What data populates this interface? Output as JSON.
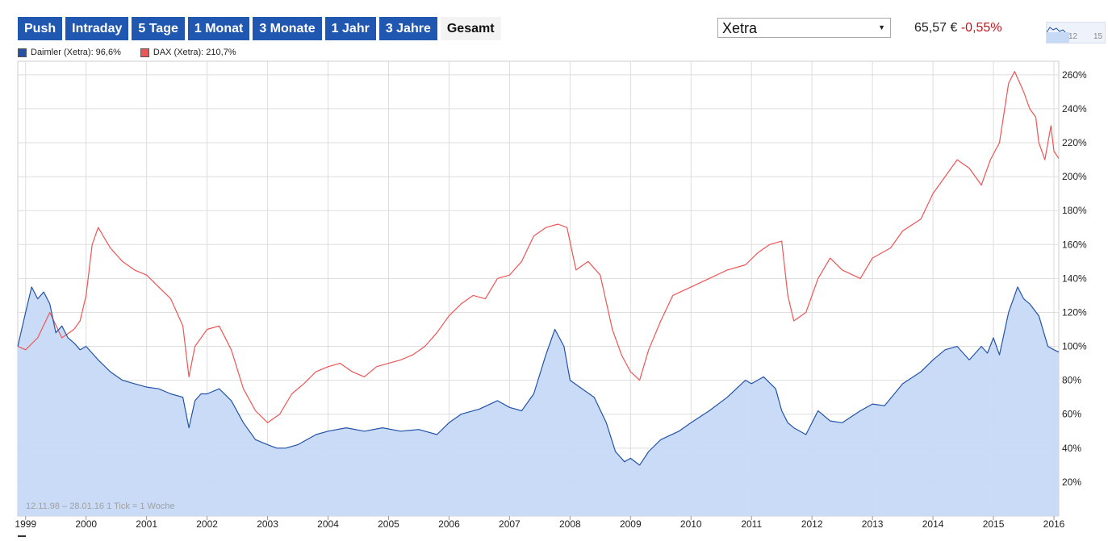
{
  "tabs": [
    {
      "label": "Push",
      "active": false
    },
    {
      "label": "Intraday",
      "active": false
    },
    {
      "label": "5 Tage",
      "active": false
    },
    {
      "label": "1 Monat",
      "active": false
    },
    {
      "label": "3 Monate",
      "active": false
    },
    {
      "label": "1 Jahr",
      "active": false
    },
    {
      "label": "3 Jahre",
      "active": false
    },
    {
      "label": "Gesamt",
      "active": true
    }
  ],
  "exchange": {
    "selected": "Xetra"
  },
  "quote": {
    "price": "65,57 €",
    "change": "-0,55%"
  },
  "mini_chart": {
    "tick_labels": [
      "12",
      "15"
    ]
  },
  "legend": [
    {
      "label": "Daimler (Xetra): 96,6%",
      "color": "#2253a8"
    },
    {
      "label": "DAX (Xetra): 210,7%",
      "color": "#ee5555"
    }
  ],
  "colors": {
    "daimler_line": "#2253a8",
    "daimler_fill": "#c6d9f5",
    "dax_line": "#ee5555",
    "grid": "#dddddd",
    "tab_bg": "#1f57b1"
  },
  "chart_data": {
    "type": "area",
    "info_text": "12.11.98 – 28.01.16    1 Tick = 1 Woche",
    "x_ticks": [
      "1999",
      "2000",
      "2001",
      "2002",
      "2003",
      "2004",
      "2005",
      "2006",
      "2007",
      "2008",
      "2009",
      "2010",
      "2011",
      "2012",
      "2013",
      "2014",
      "2015",
      "2016"
    ],
    "y_ticks": [
      "20%",
      "40%",
      "60%",
      "80%",
      "100%",
      "120%",
      "140%",
      "160%",
      "180%",
      "200%",
      "220%",
      "240%",
      "260%"
    ],
    "ylim": [
      0,
      268
    ],
    "xlim": [
      1998.87,
      2016.08
    ],
    "y_axis_position": "right",
    "grid": true,
    "series": [
      {
        "name": "Daimler (Xetra): 96,6%",
        "x": [
          1998.87,
          1999.0,
          1999.1,
          1999.2,
          1999.3,
          1999.4,
          1999.5,
          1999.6,
          1999.7,
          1999.8,
          1999.9,
          2000.0,
          2000.2,
          2000.4,
          2000.6,
          2000.8,
          2001.0,
          2001.2,
          2001.4,
          2001.6,
          2001.7,
          2001.8,
          2001.9,
          2002.0,
          2002.2,
          2002.4,
          2002.6,
          2002.8,
          2003.0,
          2003.15,
          2003.3,
          2003.5,
          2003.8,
          2004.0,
          2004.3,
          2004.6,
          2004.9,
          2005.2,
          2005.5,
          2005.8,
          2006.0,
          2006.2,
          2006.5,
          2006.8,
          2007.0,
          2007.2,
          2007.4,
          2007.6,
          2007.75,
          2007.9,
          2008.0,
          2008.2,
          2008.4,
          2008.6,
          2008.75,
          2008.9,
          2009.0,
          2009.15,
          2009.3,
          2009.5,
          2009.8,
          2010.0,
          2010.3,
          2010.6,
          2010.9,
          2011.0,
          2011.2,
          2011.4,
          2011.5,
          2011.6,
          2011.7,
          2011.9,
          2012.1,
          2012.3,
          2012.5,
          2012.8,
          2013.0,
          2013.2,
          2013.5,
          2013.8,
          2014.0,
          2014.2,
          2014.4,
          2014.6,
          2014.8,
          2014.9,
          2015.0,
          2015.1,
          2015.25,
          2015.4,
          2015.5,
          2015.6,
          2015.75,
          2015.9,
          2016.0,
          2016.08
        ],
        "values": [
          100,
          120,
          135,
          128,
          132,
          125,
          108,
          112,
          105,
          102,
          98,
          100,
          92,
          85,
          80,
          78,
          76,
          75,
          72,
          70,
          52,
          68,
          72,
          72,
          75,
          68,
          55,
          45,
          42,
          40,
          40,
          42,
          48,
          50,
          52,
          50,
          52,
          50,
          51,
          48,
          55,
          60,
          63,
          68,
          64,
          62,
          72,
          95,
          110,
          100,
          80,
          75,
          70,
          55,
          38,
          32,
          34,
          30,
          38,
          45,
          50,
          55,
          62,
          70,
          80,
          78,
          82,
          75,
          62,
          55,
          52,
          48,
          62,
          56,
          55,
          62,
          66,
          65,
          78,
          85,
          92,
          98,
          100,
          92,
          100,
          96,
          105,
          95,
          120,
          135,
          128,
          125,
          118,
          100,
          98,
          96.6
        ]
      },
      {
        "name": "DAX (Xetra): 210,7%",
        "x": [
          1998.87,
          1999.0,
          1999.2,
          1999.4,
          1999.6,
          1999.8,
          1999.9,
          2000.0,
          2000.1,
          2000.2,
          2000.4,
          2000.6,
          2000.8,
          2001.0,
          2001.2,
          2001.4,
          2001.6,
          2001.7,
          2001.8,
          2002.0,
          2002.2,
          2002.4,
          2002.6,
          2002.8,
          2003.0,
          2003.2,
          2003.4,
          2003.6,
          2003.8,
          2004.0,
          2004.2,
          2004.4,
          2004.6,
          2004.8,
          2005.0,
          2005.2,
          2005.4,
          2005.6,
          2005.8,
          2006.0,
          2006.2,
          2006.4,
          2006.6,
          2006.8,
          2007.0,
          2007.2,
          2007.4,
          2007.6,
          2007.8,
          2007.95,
          2008.1,
          2008.3,
          2008.5,
          2008.7,
          2008.85,
          2009.0,
          2009.15,
          2009.3,
          2009.5,
          2009.7,
          2010.0,
          2010.3,
          2010.6,
          2010.9,
          2011.1,
          2011.3,
          2011.5,
          2011.6,
          2011.7,
          2011.9,
          2012.1,
          2012.3,
          2012.5,
          2012.8,
          2013.0,
          2013.3,
          2013.5,
          2013.8,
          2014.0,
          2014.2,
          2014.4,
          2014.6,
          2014.8,
          2014.95,
          2015.1,
          2015.25,
          2015.35,
          2015.5,
          2015.6,
          2015.7,
          2015.75,
          2015.85,
          2015.95,
          2016.0,
          2016.08
        ],
        "values": [
          100,
          98,
          105,
          120,
          105,
          110,
          115,
          130,
          160,
          170,
          158,
          150,
          145,
          142,
          135,
          128,
          112,
          82,
          100,
          110,
          112,
          98,
          75,
          62,
          55,
          60,
          72,
          78,
          85,
          88,
          90,
          85,
          82,
          88,
          90,
          92,
          95,
          100,
          108,
          118,
          125,
          130,
          128,
          140,
          142,
          150,
          165,
          170,
          172,
          170,
          145,
          150,
          142,
          110,
          95,
          85,
          80,
          98,
          115,
          130,
          135,
          140,
          145,
          148,
          155,
          160,
          162,
          130,
          115,
          120,
          140,
          152,
          145,
          140,
          152,
          158,
          168,
          175,
          190,
          200,
          210,
          205,
          195,
          210,
          220,
          255,
          262,
          250,
          240,
          235,
          220,
          210,
          230,
          215,
          210.7
        ]
      }
    ]
  }
}
